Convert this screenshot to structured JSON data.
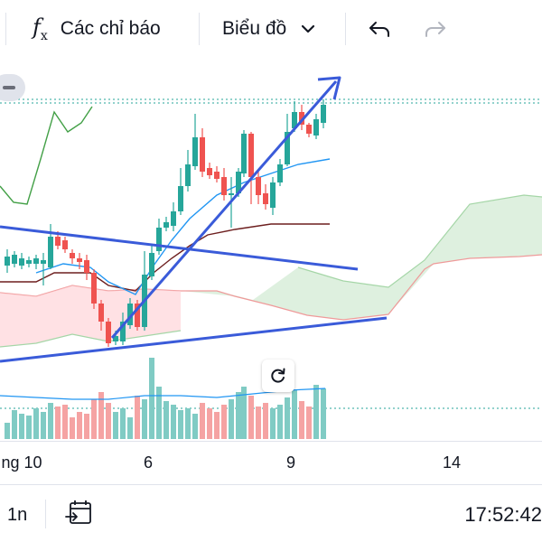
{
  "toolbar": {
    "indicators_label": "Các chỉ báo",
    "chart_type_label": "Biểu đồ",
    "icons": [
      "fx-icon",
      "chevron-down-icon",
      "undo-icon",
      "redo-icon"
    ]
  },
  "x_axis": {
    "labels": [
      "ng 10",
      "6",
      "9",
      "14"
    ]
  },
  "bottom_bar": {
    "interval": "1n",
    "time": "17:52:42",
    "icons": [
      "calendar-range-icon"
    ]
  },
  "colors": {
    "up": "#26a69a",
    "down": "#ef5350",
    "trendline": "#2962ff",
    "cloud_green": "#a5d6a7",
    "cloud_red": "#ef9a9a"
  }
}
